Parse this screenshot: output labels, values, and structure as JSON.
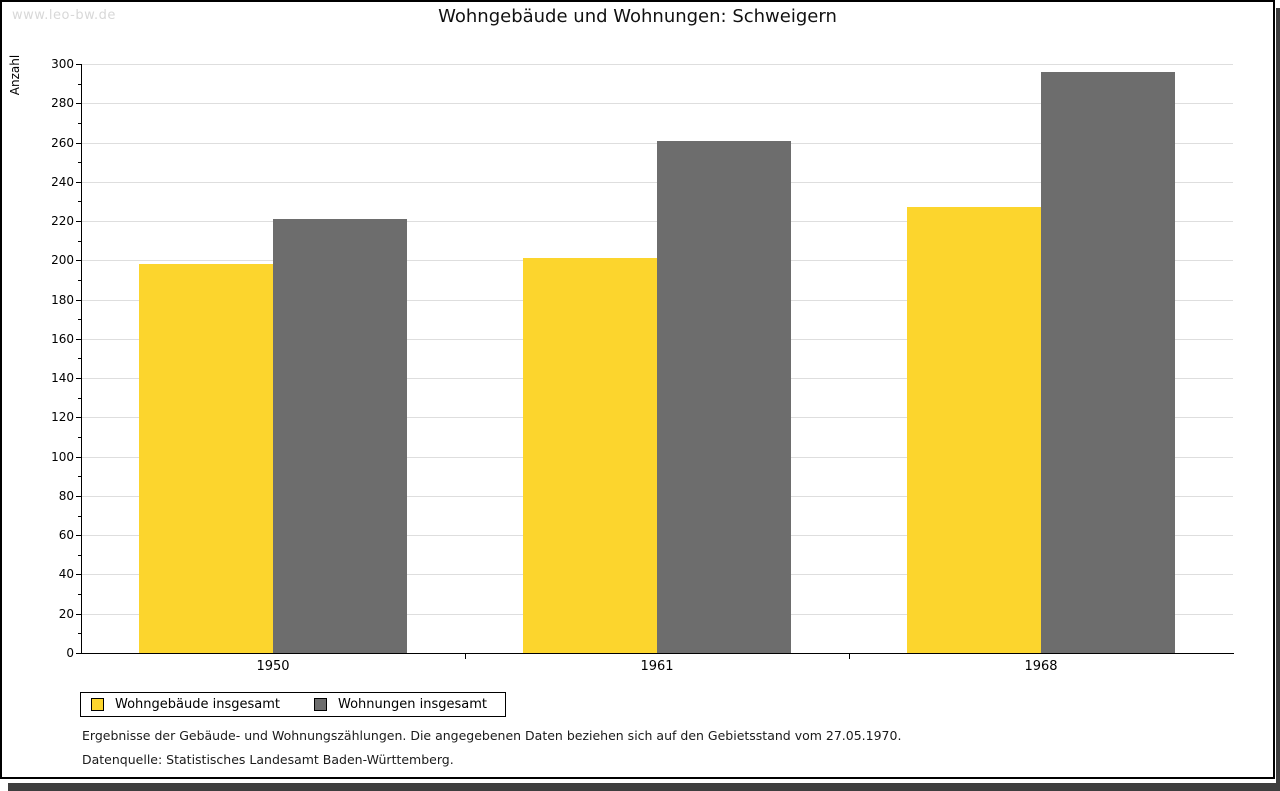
{
  "watermark": "www.leo-bw.de",
  "title": "Wohngebäude und Wohnungen: Schweigern",
  "chart_data": {
    "type": "bar",
    "title": "Wohngebäude und Wohnungen: Schweigern",
    "categories": [
      "1950",
      "1961",
      "1968"
    ],
    "series": [
      {
        "name": "Wohngebäude insgesamt",
        "color": "#fcd52d",
        "values": [
          198,
          201,
          227
        ]
      },
      {
        "name": "Wohnungen insgesamt",
        "color": "#6d6d6d",
        "values": [
          221,
          261,
          296
        ]
      }
    ],
    "xlabel": "",
    "ylabel": "Anzahl",
    "ylim": [
      0,
      300
    ],
    "ytick_step": 20,
    "minor_tick_step": 10,
    "grid": true,
    "gridline_color": "#dedede",
    "legend_position": "bottom-left"
  },
  "footer": {
    "line1": "Ergebnisse der Gebäude- und Wohnungszählungen. Die angegebenen Daten beziehen sich auf den Gebietsstand vom 27.05.1970.",
    "line2": "Datenquelle: Statistisches Landesamt Baden-Württemberg."
  },
  "colors": {
    "series_yellow": "#fcd52d",
    "series_gray": "#6d6d6d",
    "gridline": "#dedede",
    "axis": "#000000",
    "shadow": "#3e3e3e",
    "watermark_text": "#d8d8d8"
  }
}
